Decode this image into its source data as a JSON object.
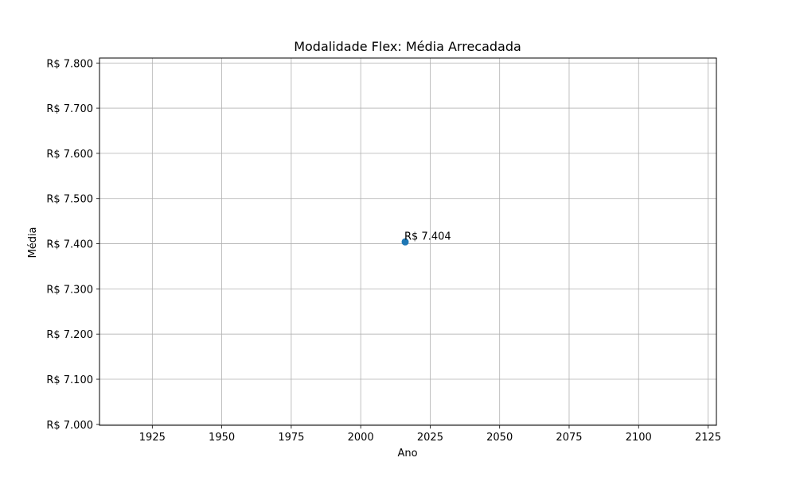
{
  "chart_data": {
    "type": "scatter",
    "title": "Modalidade Flex: Média Arrecadada",
    "xlabel": "Ano",
    "ylabel": "Média",
    "xlim": [
      1906,
      2128
    ],
    "ylim": [
      6998,
      7811
    ],
    "x_ticks": [
      1925,
      1950,
      1975,
      2000,
      2025,
      2050,
      2075,
      2100,
      2125
    ],
    "y_ticks": [
      7000,
      7100,
      7200,
      7300,
      7400,
      7500,
      7600,
      7700,
      7800
    ],
    "y_tick_labels": [
      "R$ 7.000",
      "R$ 7.100",
      "R$ 7.200",
      "R$ 7.300",
      "R$ 7.400",
      "R$ 7.500",
      "R$ 7.600",
      "R$ 7.700",
      "R$ 7.800"
    ],
    "grid": true,
    "series": [
      {
        "x": [
          2016
        ],
        "y": [
          7404
        ],
        "labels": [
          "R$ 7.404"
        ],
        "color": "#1f77b4"
      }
    ]
  }
}
